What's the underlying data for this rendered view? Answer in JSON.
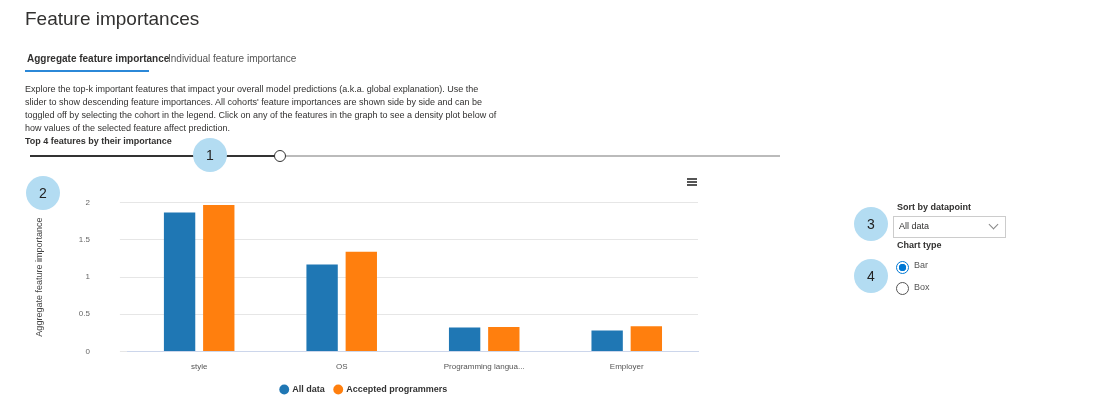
{
  "chart_data": {
    "type": "bar",
    "title": "Feature importances",
    "ylabel": "Aggregate feature importance",
    "categories": [
      "style",
      "OS",
      "Programming langua...",
      "Employer"
    ],
    "series": [
      {
        "name": "All data",
        "color": "#1f77b4",
        "values": [
          1.87,
          1.17,
          0.32,
          0.28
        ]
      },
      {
        "name": "Accepted programmers",
        "color": "#ff7f0e",
        "values": [
          1.97,
          1.34,
          0.33,
          0.34
        ]
      }
    ],
    "ylim": [
      0,
      2
    ],
    "yticks": [
      0,
      0.5,
      1,
      1.5,
      2
    ],
    "grid": "y",
    "legend": "bottom",
    "annotations": [
      "Aggregate feature importance",
      "Individual feature importance",
      "Explore the top-k important features that impact your overall model predictions (a.k.a. global explanation). Use the slider to show descending feature importances. All cohorts' feature importances are shown side by side and can be toggled off by selecting the cohort in the legend. Click on any of the features in the graph to see a density plot below of how values of the selected feature affect prediction.",
      "Top 4 features by their importance",
      "Sort by datapoint",
      "All data",
      "Chart type",
      "Bar",
      "Box",
      "1",
      "2",
      "3",
      "4"
    ]
  }
}
